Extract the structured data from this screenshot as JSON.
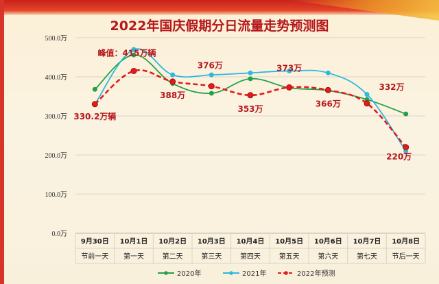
{
  "chart_data": {
    "type": "line",
    "title": "2022年国庆假期分日流量走势预测图",
    "categories": [
      [
        "9月30日",
        "节前一天"
      ],
      [
        "10月1日",
        "第一天"
      ],
      [
        "10月2日",
        "第二天"
      ],
      [
        "10月3日",
        "第三天"
      ],
      [
        "10月4日",
        "第四天"
      ],
      [
        "10月5日",
        "第五天"
      ],
      [
        "10月6日",
        "第六天"
      ],
      [
        "10月7日",
        "第七天"
      ],
      [
        "10月8日",
        "节后一天"
      ]
    ],
    "ylim": [
      0,
      500
    ],
    "yticks": [
      "0.0万",
      "100.0万",
      "200.0万",
      "300.0万",
      "400.0万",
      "500.0万"
    ],
    "legend_position": "bottom",
    "series": [
      {
        "name": "2020年",
        "color": "#22a04a",
        "dash": false,
        "marker": "circle",
        "values": [
          368,
          456,
          383,
          358,
          395,
          372,
          365,
          342,
          305
        ]
      },
      {
        "name": "2021年",
        "color": "#2bb9e0",
        "dash": false,
        "marker": "circle",
        "values": [
          330,
          470,
          405,
          405,
          410,
          415,
          410,
          355,
          210
        ]
      },
      {
        "name": "2022年预测",
        "color": "#e31b1b",
        "dash": true,
        "marker": "circle",
        "values": [
          330.2,
          415,
          388,
          376,
          353,
          373,
          366,
          332,
          220
        ]
      }
    ],
    "annotations": [
      {
        "text": "330.2万辆",
        "index": 0,
        "series": 2
      },
      {
        "text": "峰值：415万辆",
        "index": 1,
        "series": 2
      },
      {
        "text": "388万",
        "index": 2,
        "series": 2
      },
      {
        "text": "376万",
        "index": 3,
        "series": 2
      },
      {
        "text": "353万",
        "index": 4,
        "series": 2
      },
      {
        "text": "373万",
        "index": 5,
        "series": 2
      },
      {
        "text": "366万",
        "index": 6,
        "series": 2
      },
      {
        "text": "332万",
        "index": 7,
        "series": 2
      },
      {
        "text": "220万",
        "index": 8,
        "series": 2
      }
    ]
  }
}
